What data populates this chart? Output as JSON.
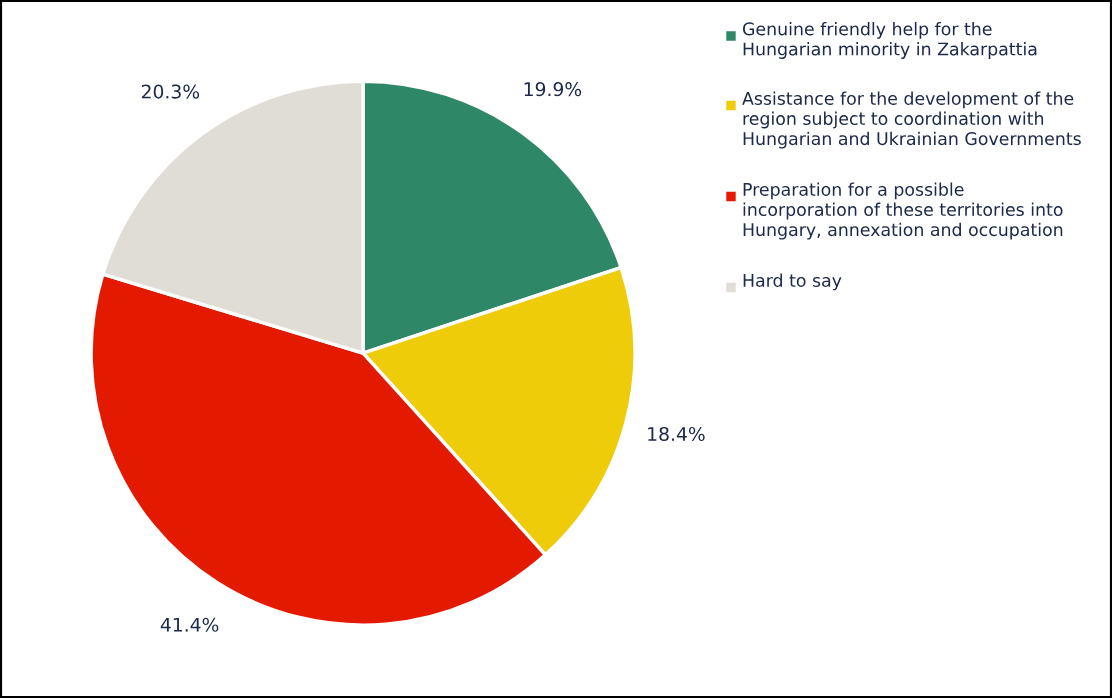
{
  "chart_data": {
    "type": "pie",
    "categories": [
      "Genuine friendly help for the Hungarian minority in Zakarpattia",
      "Assistance for the development of the region subject to coordination with Hungarian and Ukrainian Governments",
      "Preparation for a possible incorporation of these territories into Hungary, annexation and occupation",
      "Hard to say"
    ],
    "values": [
      19.9,
      18.4,
      41.4,
      20.3
    ],
    "colors": [
      "#2e8867",
      "#eecc0a",
      "#e41a00",
      "#e0dcd6"
    ],
    "value_labels": [
      "19.9%",
      "18.4%",
      "41.4%",
      "20.3%"
    ],
    "legend": "right"
  }
}
